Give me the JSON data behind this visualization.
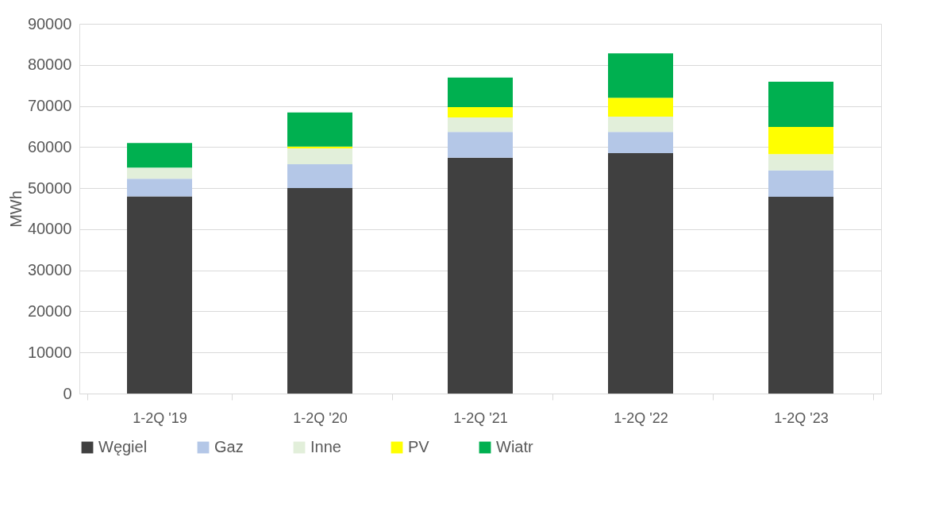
{
  "chart_data": {
    "type": "bar",
    "stacked": true,
    "ylabel": "MWh",
    "categories": [
      "1-2Q '19",
      "1-2Q '20",
      "1-2Q '21",
      "1-2Q '22",
      "1-2Q '23"
    ],
    "series": [
      {
        "name": "Węgiel",
        "color": "#404040",
        "values": [
          48000,
          50000,
          57400,
          58500,
          47900
        ]
      },
      {
        "name": "Gaz",
        "color": "#b4c7e7",
        "values": [
          4300,
          5800,
          6300,
          5200,
          6400
        ]
      },
      {
        "name": "Inne",
        "color": "#e2efda",
        "values": [
          2700,
          3900,
          3500,
          3700,
          4000
        ]
      },
      {
        "name": "PV",
        "color": "#ffff00",
        "values": [
          0,
          400,
          2500,
          4600,
          6600
        ]
      },
      {
        "name": "Wiatr",
        "color": "#00b050",
        "values": [
          6000,
          8300,
          7200,
          10800,
          11000
        ]
      }
    ],
    "ylim": [
      0,
      90000
    ],
    "yticks": [
      0,
      10000,
      20000,
      30000,
      40000,
      50000,
      60000,
      70000,
      80000,
      90000
    ],
    "grid": "y",
    "legend": "bottom"
  }
}
